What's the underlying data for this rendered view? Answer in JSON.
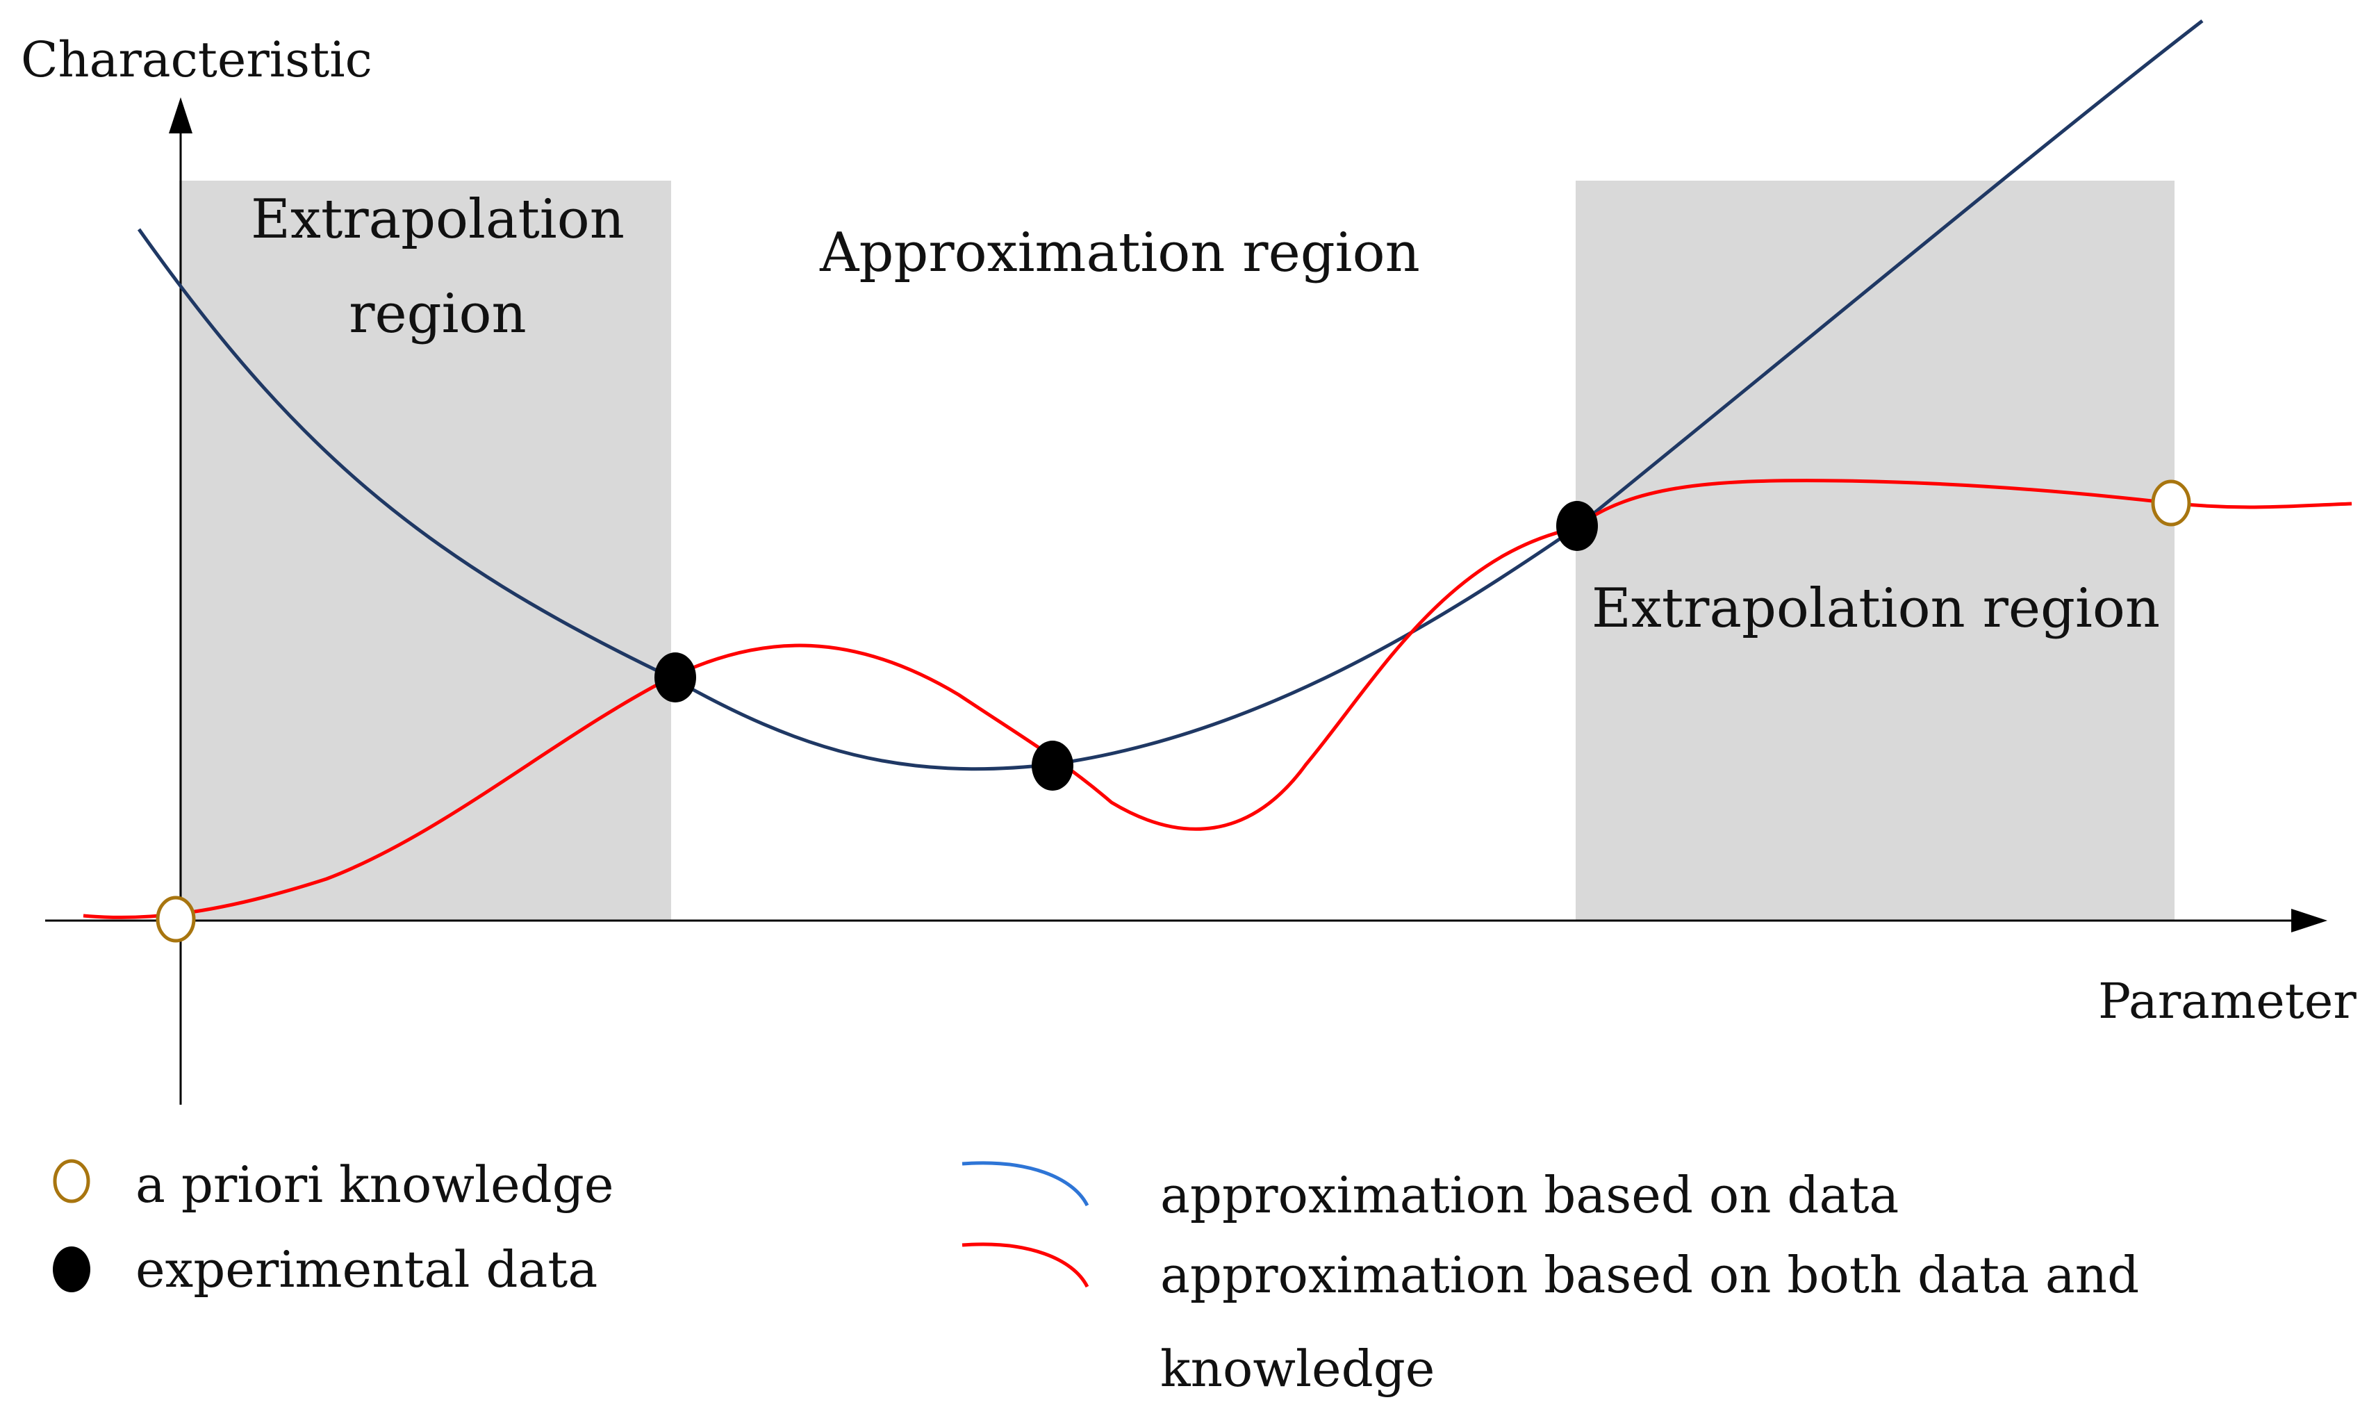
{
  "axes": {
    "y_label": "Characteristic",
    "x_label": "Parameter"
  },
  "regions": {
    "left_line1": "Extrapolation",
    "left_line2": "region",
    "middle": "Approximation region",
    "right": "Extrapolation region"
  },
  "legend": {
    "apriori": "a priori knowledge",
    "experimental": "experimental data",
    "data_approx": "approximation based on data",
    "both_approx_line1": "approximation based on both data and",
    "both_approx_line2": "knowledge"
  },
  "colors": {
    "region_fill": "#d9d9d9",
    "blue_curve": "#1f3864",
    "legend_blue": "#2e75d6",
    "red_curve": "#ff0000",
    "apriori_marker": "#a8750f",
    "data_marker": "#000000",
    "axis": "#000000"
  }
}
